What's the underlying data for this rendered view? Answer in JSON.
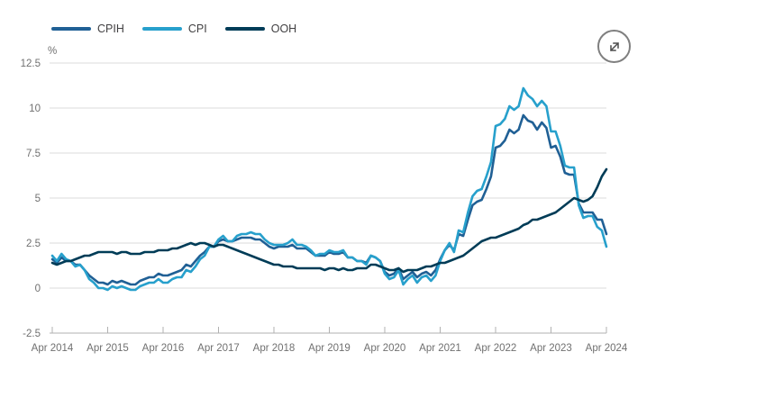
{
  "legend": {
    "position": "top-left",
    "items": [
      {
        "label": "CPIH",
        "swatch_color": "#206095"
      },
      {
        "label": "CPI",
        "swatch_color": "#27A0CC"
      },
      {
        "label": "OOH",
        "swatch_color": "#003C57"
      }
    ]
  },
  "expand_button": {
    "icon": "expand-arrows-icon"
  },
  "chart_data": {
    "type": "line",
    "title": "",
    "xlabel": "",
    "ylabel": "%",
    "ylim": [
      -2.5,
      12.5
    ],
    "grid": "horizontal",
    "legend_position": "top-left",
    "x_frequency": "monthly",
    "x_range": [
      "Apr 2014",
      "Apr 2024"
    ],
    "x_tick_labels": [
      "Apr 2014",
      "Apr 2015",
      "Apr 2016",
      "Apr 2017",
      "Apr 2018",
      "Apr 2019",
      "Apr 2020",
      "Apr 2021",
      "Apr 2022",
      "Apr 2023",
      "Apr 2024"
    ],
    "y_ticks": [
      {
        "label": "12.5",
        "value": 12.5
      },
      {
        "label": "10",
        "value": 10
      },
      {
        "label": "7.5",
        "value": 7.5
      },
      {
        "label": "5",
        "value": 5
      },
      {
        "label": "2.5",
        "value": 2.5
      },
      {
        "label": "0",
        "value": 0
      },
      {
        "label": "-2.5",
        "value": -2.5
      }
    ],
    "colors": {
      "grid": "#dbdbdb",
      "axis": "#b1b1b1",
      "tick_label": "#707070"
    },
    "series": [
      {
        "name": "CPIH",
        "color": "#206095",
        "values": [
          1.6,
          1.4,
          1.7,
          1.5,
          1.5,
          1.3,
          1.3,
          1.0,
          0.7,
          0.5,
          0.3,
          0.3,
          0.2,
          0.4,
          0.3,
          0.4,
          0.3,
          0.2,
          0.2,
          0.4,
          0.5,
          0.6,
          0.6,
          0.8,
          0.7,
          0.7,
          0.8,
          0.9,
          1.0,
          1.3,
          1.2,
          1.5,
          1.8,
          2.0,
          2.3,
          2.3,
          2.6,
          2.7,
          2.6,
          2.6,
          2.7,
          2.8,
          2.8,
          2.8,
          2.7,
          2.7,
          2.5,
          2.3,
          2.2,
          2.3,
          2.3,
          2.3,
          2.4,
          2.2,
          2.2,
          2.2,
          2.0,
          1.8,
          1.8,
          1.8,
          2.0,
          1.9,
          1.9,
          2.0,
          1.7,
          1.7,
          1.5,
          1.5,
          1.4,
          1.8,
          1.7,
          1.5,
          0.9,
          0.7,
          0.8,
          1.1,
          0.5,
          0.7,
          0.9,
          0.6,
          0.8,
          0.9,
          0.7,
          1.0,
          1.6,
          2.1,
          2.4,
          2.1,
          3.0,
          2.9,
          3.8,
          4.6,
          4.8,
          4.9,
          5.5,
          6.2,
          7.8,
          7.9,
          8.2,
          8.8,
          8.6,
          8.8,
          9.6,
          9.3,
          9.2,
          8.8,
          9.2,
          8.9,
          7.8,
          7.9,
          7.3,
          6.4,
          6.3,
          6.3,
          4.7,
          4.2,
          4.2,
          4.2,
          3.8,
          3.8,
          3.0
        ]
      },
      {
        "name": "CPI",
        "color": "#27A0CC",
        "values": [
          1.8,
          1.5,
          1.9,
          1.6,
          1.5,
          1.2,
          1.3,
          1.0,
          0.5,
          0.3,
          0.0,
          0.0,
          -0.1,
          0.1,
          0.0,
          0.1,
          0.0,
          -0.1,
          -0.1,
          0.1,
          0.2,
          0.3,
          0.3,
          0.5,
          0.3,
          0.3,
          0.5,
          0.6,
          0.6,
          1.0,
          0.9,
          1.2,
          1.6,
          1.8,
          2.3,
          2.3,
          2.7,
          2.9,
          2.6,
          2.6,
          2.9,
          3.0,
          3.0,
          3.1,
          3.0,
          3.0,
          2.7,
          2.5,
          2.4,
          2.4,
          2.4,
          2.5,
          2.7,
          2.4,
          2.4,
          2.3,
          2.1,
          1.8,
          1.9,
          1.9,
          2.1,
          2.0,
          2.0,
          2.1,
          1.7,
          1.7,
          1.5,
          1.5,
          1.3,
          1.8,
          1.7,
          1.5,
          0.8,
          0.5,
          0.6,
          1.0,
          0.2,
          0.5,
          0.7,
          0.3,
          0.6,
          0.7,
          0.4,
          0.7,
          1.5,
          2.1,
          2.5,
          2.0,
          3.2,
          3.1,
          4.2,
          5.1,
          5.4,
          5.5,
          6.2,
          7.0,
          9.0,
          9.1,
          9.4,
          10.1,
          9.9,
          10.1,
          11.1,
          10.7,
          10.5,
          10.1,
          10.4,
          10.1,
          8.7,
          8.7,
          7.9,
          6.8,
          6.7,
          6.7,
          4.6,
          3.9,
          4.0,
          4.0,
          3.4,
          3.2,
          2.3
        ]
      },
      {
        "name": "OOH",
        "color": "#003C57",
        "values": [
          1.4,
          1.3,
          1.4,
          1.5,
          1.5,
          1.6,
          1.7,
          1.8,
          1.8,
          1.9,
          2.0,
          2.0,
          2.0,
          2.0,
          1.9,
          2.0,
          2.0,
          1.9,
          1.9,
          1.9,
          2.0,
          2.0,
          2.0,
          2.1,
          2.1,
          2.1,
          2.2,
          2.2,
          2.3,
          2.4,
          2.5,
          2.4,
          2.5,
          2.5,
          2.4,
          2.3,
          2.4,
          2.4,
          2.3,
          2.2,
          2.1,
          2.0,
          1.9,
          1.8,
          1.7,
          1.6,
          1.5,
          1.4,
          1.3,
          1.3,
          1.2,
          1.2,
          1.2,
          1.1,
          1.1,
          1.1,
          1.1,
          1.1,
          1.1,
          1.0,
          1.1,
          1.1,
          1.0,
          1.1,
          1.0,
          1.0,
          1.1,
          1.1,
          1.1,
          1.3,
          1.3,
          1.2,
          1.1,
          1.0,
          1.0,
          1.1,
          0.9,
          1.0,
          1.0,
          1.0,
          1.1,
          1.2,
          1.2,
          1.3,
          1.4,
          1.4,
          1.5,
          1.6,
          1.7,
          1.8,
          2.0,
          2.2,
          2.4,
          2.6,
          2.7,
          2.8,
          2.8,
          2.9,
          3.0,
          3.1,
          3.2,
          3.3,
          3.5,
          3.6,
          3.8,
          3.8,
          3.9,
          4.0,
          4.1,
          4.2,
          4.4,
          4.6,
          4.8,
          5.0,
          4.9,
          4.8,
          4.9,
          5.1,
          5.6,
          6.2,
          6.6
        ]
      }
    ]
  }
}
